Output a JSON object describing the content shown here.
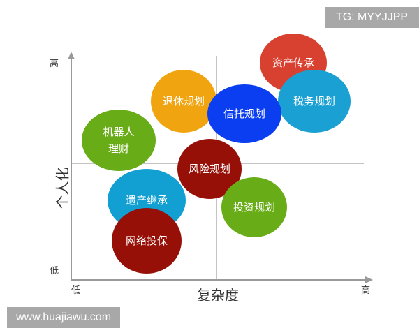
{
  "watermark_top": "TG: MYYJJPP",
  "watermark_bottom": "www.huajiawu.com",
  "axes": {
    "y_label": "个人化",
    "y_high": "高",
    "y_low": "低",
    "x_label": "复杂度",
    "x_low": "低",
    "x_high": "高"
  },
  "bubbles": [
    {
      "label": "资产传承",
      "color": "#d84030"
    },
    {
      "label": "税务规划",
      "color": "#1aa0d2"
    },
    {
      "label": "退休规划",
      "color": "#f0a510"
    },
    {
      "label": "信托规划",
      "color": "#0a3ef0"
    },
    {
      "label": "机器人\n理财",
      "color": "#68ac18"
    },
    {
      "label": "风险规划",
      "color": "#961008"
    },
    {
      "label": "遗产继承",
      "color": "#12a0d2"
    },
    {
      "label": "投资规划",
      "color": "#68ac18"
    },
    {
      "label": "网络投保",
      "color": "#961008"
    }
  ]
}
